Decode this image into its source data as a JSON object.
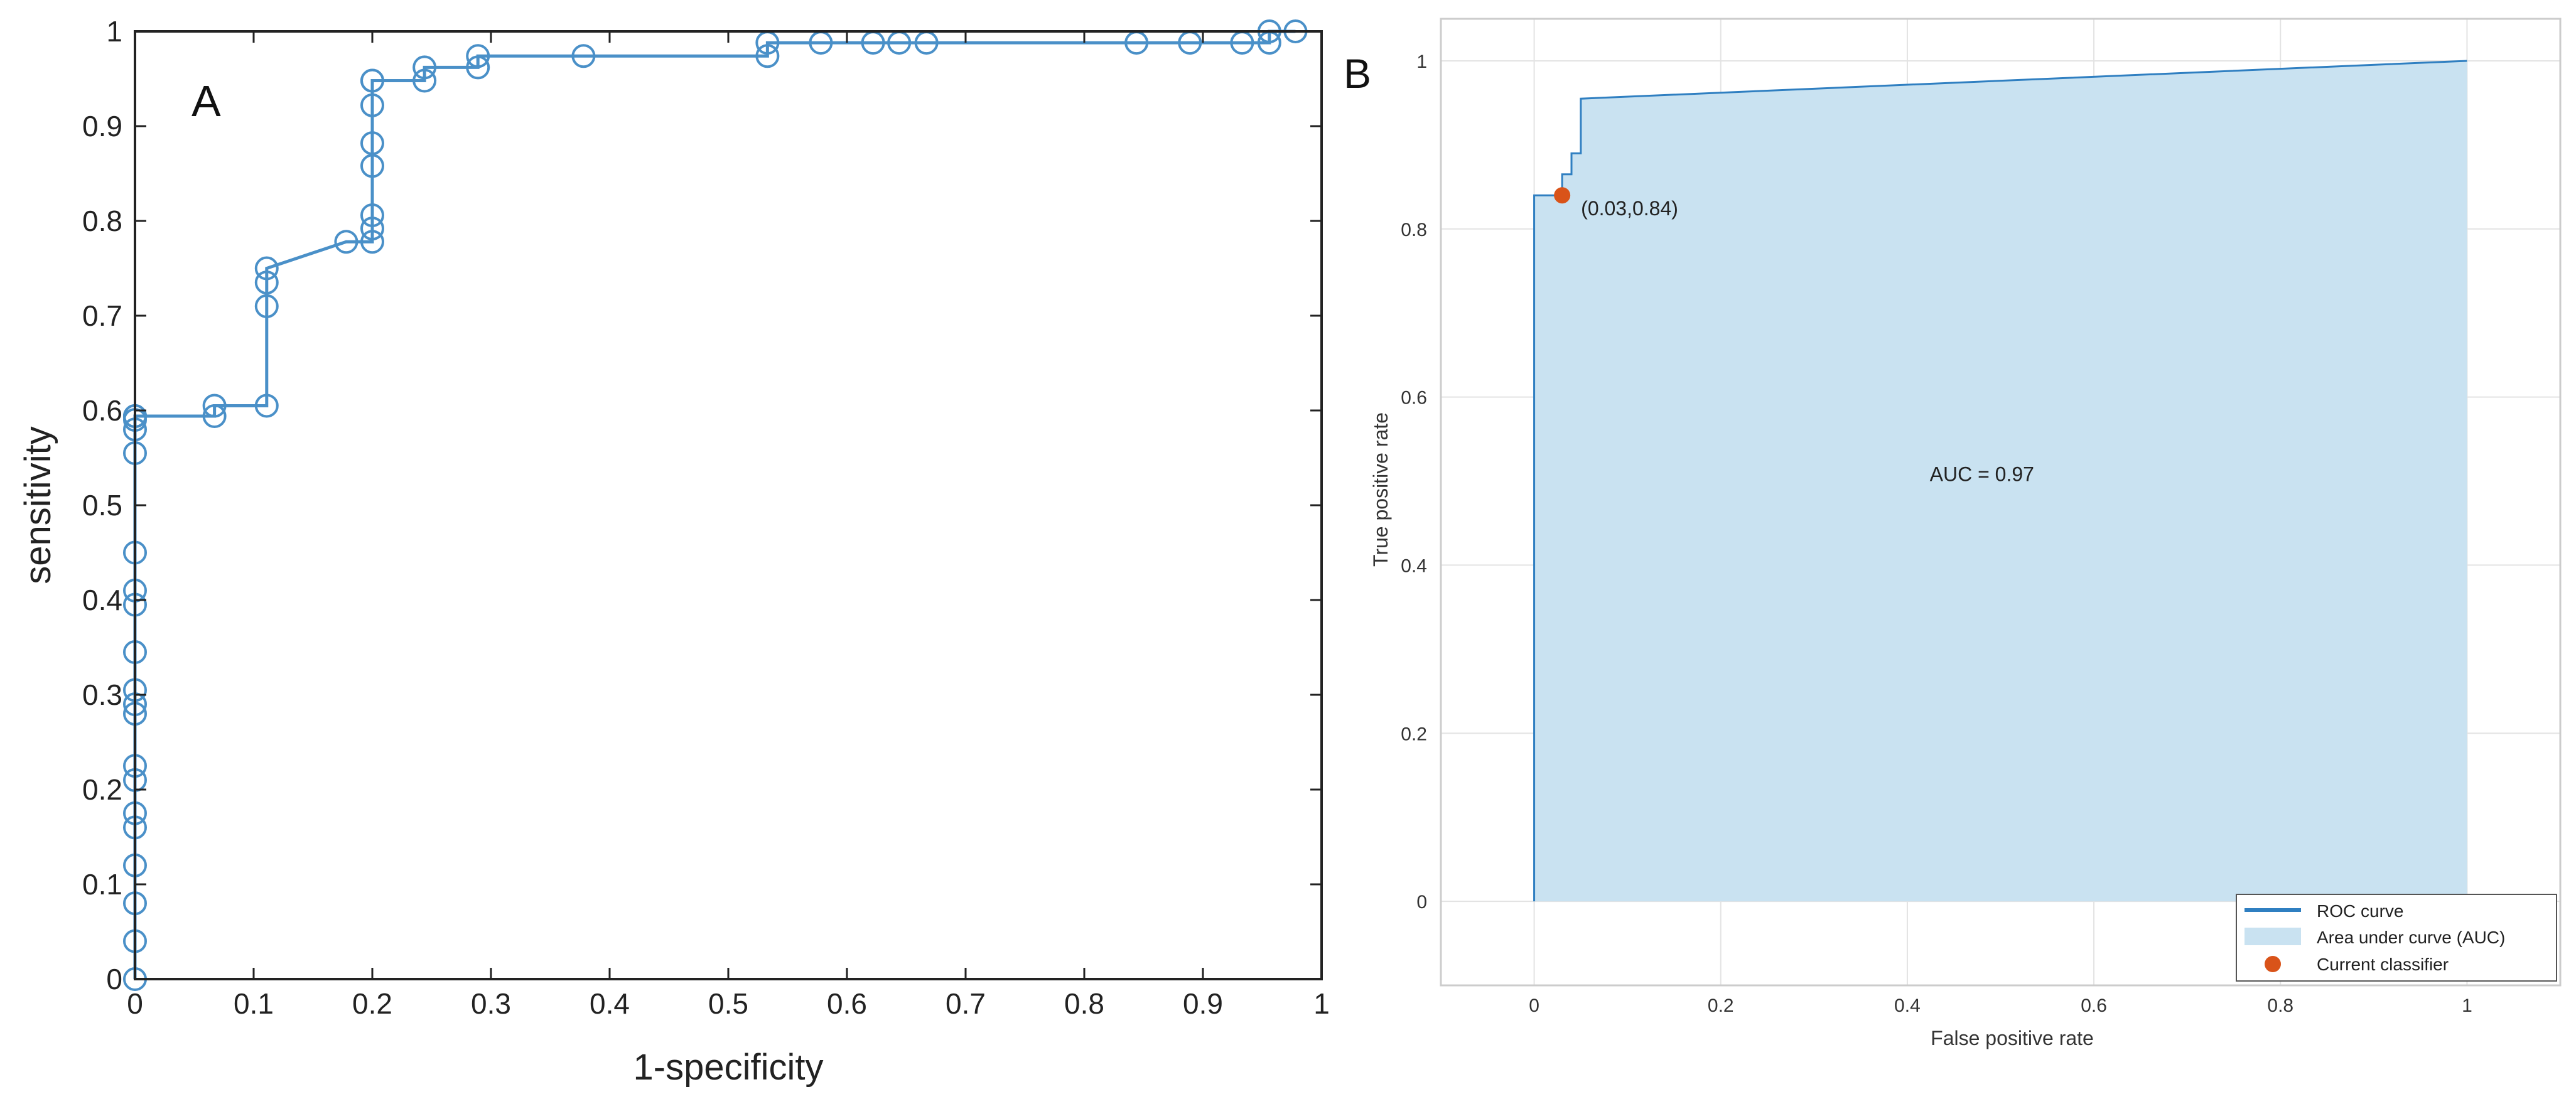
{
  "chart_data": [
    {
      "panel": "A",
      "type": "line",
      "xlabel": "1-specificity",
      "ylabel": "sensitivity",
      "xlim": [
        0,
        1
      ],
      "ylim": [
        0,
        1
      ],
      "grid": false,
      "xticks": [
        "0",
        "0.1",
        "0.2",
        "0.3",
        "0.4",
        "0.5",
        "0.6",
        "0.7",
        "0.8",
        "0.9",
        "1"
      ],
      "yticks": [
        "0",
        "0.1",
        "0.2",
        "0.3",
        "0.4",
        "0.5",
        "0.6",
        "0.7",
        "0.8",
        "0.9",
        "1"
      ],
      "colors": {
        "line": "#4a90c8",
        "axes": "#222222"
      },
      "series": [
        {
          "marker": "open-circle",
          "x": [
            0,
            0,
            0,
            0,
            0,
            0,
            0,
            0,
            0,
            0,
            0,
            0,
            0,
            0,
            0,
            0,
            0,
            0,
            0,
            0,
            0,
            0.067,
            0.067,
            0.111,
            0.111,
            0.111,
            0.111,
            0.178,
            0.2,
            0.2,
            0.2,
            0.2,
            0.2,
            0.2,
            0.2,
            0.2,
            0.244,
            0.244,
            0.289,
            0.289,
            0.378,
            0.533,
            0.533,
            0.578,
            0.622,
            0.644,
            0.667,
            0.844,
            0.889,
            0.933,
            0.956,
            0.956,
            0.978
          ],
          "y": [
            0,
            0.04,
            0.08,
            0.12,
            0.16,
            0.175,
            0.21,
            0.225,
            0.28,
            0.29,
            0.305,
            0.345,
            0.395,
            0.41,
            0.45,
            0.555,
            0.58,
            0.59,
            0.594,
            0.594,
            0.594,
            0.594,
            0.605,
            0.605,
            0.71,
            0.735,
            0.75,
            0.778,
            0.778,
            0.792,
            0.806,
            0.858,
            0.882,
            0.922,
            0.948,
            0.948,
            0.948,
            0.962,
            0.962,
            0.974,
            0.974,
            0.974,
            0.988,
            0.988,
            0.988,
            0.988,
            0.988,
            0.988,
            0.988,
            0.988,
            0.988,
            1,
            1
          ]
        }
      ]
    },
    {
      "panel": "B",
      "type": "area",
      "xlabel": "False positive rate",
      "ylabel": "True positive rate",
      "xlim": [
        -0.1,
        1.1
      ],
      "ylim": [
        -0.1,
        1.05
      ],
      "grid": true,
      "xticks": [
        "0",
        "0.2",
        "0.4",
        "0.6",
        "0.8",
        "1"
      ],
      "yticks": [
        "0",
        "0.2",
        "0.4",
        "0.6",
        "0.8",
        "1"
      ],
      "colors": {
        "line": "#2f7fc1",
        "fill": "#c9e2f1",
        "point": "#d95319",
        "grid": "#e3e3e3"
      },
      "series": [
        {
          "name": "ROC curve",
          "x": [
            0,
            0,
            0.02,
            0.03,
            0.03,
            0.04,
            0.04,
            0.05,
            0.05,
            1
          ],
          "y": [
            0,
            0.84,
            0.84,
            0.84,
            0.865,
            0.865,
            0.89,
            0.89,
            0.955,
            1
          ]
        },
        {
          "name": "Area under curve (AUC)"
        },
        {
          "name": "Current classifier",
          "x": [
            0.03
          ],
          "y": [
            0.84
          ]
        }
      ],
      "annotations": [
        {
          "text": "(0.03,0.84)",
          "x": 0.03,
          "y": 0.84
        },
        {
          "text": "AUC = 0.97",
          "x": 0.48,
          "y": 0.5
        }
      ],
      "legend_position": "bottom-right"
    }
  ],
  "labels": {
    "panel_a": "A",
    "panel_b": "B"
  }
}
